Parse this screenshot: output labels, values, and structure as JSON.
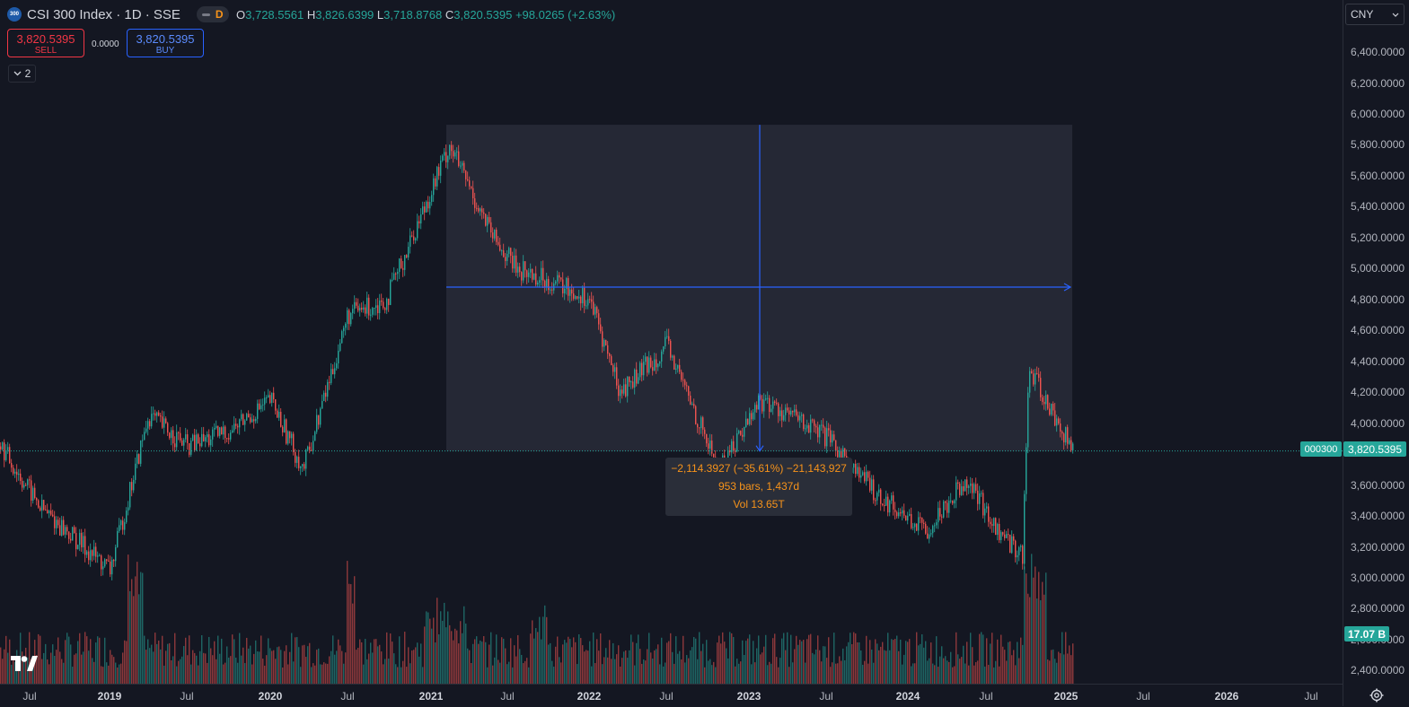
{
  "header": {
    "logo_text": "300",
    "title": "CSI 300 Index · 1D · SSE",
    "pill_label": "D",
    "ohlc": {
      "o_label": "O",
      "o": "3,728.5561",
      "h_label": "H",
      "h": "3,826.6399",
      "l_label": "L",
      "l": "3,718.8768",
      "c_label": "C",
      "c": "3,820.5395",
      "change": "+98.0265 (+2.63%)"
    }
  },
  "trade": {
    "sell_price": "3,820.5395",
    "sell_label": "SELL",
    "spread": "0.0000",
    "buy_price": "3,820.5395",
    "buy_label": "BUY"
  },
  "indicators": {
    "count": "2"
  },
  "currency": {
    "selected": "CNY"
  },
  "price_axis": {
    "ticks": [
      "6,400.0000",
      "6,200.0000",
      "6,000.0000",
      "5,800.0000",
      "5,600.0000",
      "5,400.0000",
      "5,200.0000",
      "5,000.0000",
      "4,800.0000",
      "4,600.0000",
      "4,400.0000",
      "4,200.0000",
      "4,000.0000",
      "3,600.0000",
      "3,400.0000",
      "3,200.0000",
      "3,000.0000",
      "2,800.0000",
      "2,600.0000",
      "2,400.0000"
    ],
    "tick_values": [
      6400,
      6200,
      6000,
      5800,
      5600,
      5400,
      5200,
      5000,
      4800,
      4600,
      4400,
      4200,
      4000,
      3600,
      3400,
      3200,
      3000,
      2800,
      2600,
      2400
    ],
    "last_price": "3,820.5395",
    "symbol": "000300",
    "volume": "17.07 B"
  },
  "time_axis": {
    "labels": [
      {
        "text": "Jul",
        "year": false
      },
      {
        "text": "2019",
        "year": true
      },
      {
        "text": "Jul",
        "year": false
      },
      {
        "text": "2020",
        "year": true
      },
      {
        "text": "Jul",
        "year": false
      },
      {
        "text": "2021",
        "year": true
      },
      {
        "text": "Jul",
        "year": false
      },
      {
        "text": "2022",
        "year": true
      },
      {
        "text": "Jul",
        "year": false
      },
      {
        "text": "2023",
        "year": true
      },
      {
        "text": "Jul",
        "year": false
      },
      {
        "text": "2024",
        "year": true
      },
      {
        "text": "Jul",
        "year": false
      },
      {
        "text": "2025",
        "year": true
      },
      {
        "text": "Jul",
        "year": false
      },
      {
        "text": "2026",
        "year": true
      },
      {
        "text": "Jul",
        "year": false
      }
    ]
  },
  "measure": {
    "line1": "−2,114.3927 (−35.61%) −21,143,927",
    "line2": "953 bars, 1,437d",
    "line3": "Vol 13.65T"
  },
  "colors": {
    "up": "#26a69a",
    "down": "#ef5350",
    "accent": "#2962ff",
    "measure_text": "#f7931a"
  },
  "chart_data": {
    "type": "line",
    "title": "CSI 300 Index · 1D · SSE",
    "x": [
      "2018-07",
      "2018-10",
      "2019-01",
      "2019-04",
      "2019-07",
      "2019-10",
      "2020-01",
      "2020-03",
      "2020-07",
      "2020-10",
      "2021-02",
      "2021-05",
      "2021-07",
      "2021-10",
      "2022-01",
      "2022-04",
      "2022-07",
      "2022-10",
      "2023-01",
      "2023-04",
      "2023-07",
      "2023-10",
      "2024-02",
      "2024-05",
      "2024-08",
      "2024-09",
      "2024-10",
      "2024-12"
    ],
    "series": [
      {
        "values": [
          3850,
          3450,
          3050,
          4050,
          3850,
          3950,
          4150,
          3700,
          4700,
          4800,
          5800,
          5200,
          5000,
          4900,
          4800,
          4200,
          4500,
          3700,
          4150,
          4050,
          3900,
          3550,
          3300,
          3650,
          3300,
          3150,
          4350,
          3820
        ]
      }
    ],
    "ylim": [
      2300,
      6450
    ],
    "measure": {
      "from_price": 5930,
      "to_price": 3820,
      "change": -2114.3927,
      "change_pct": -35.61,
      "bars": 953,
      "days": 1437
    }
  }
}
